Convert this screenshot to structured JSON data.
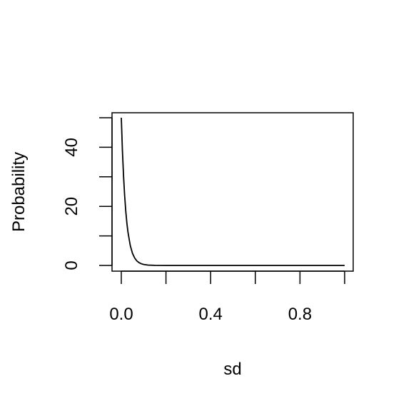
{
  "chart_data": {
    "type": "line",
    "title": "",
    "xlabel": "sd",
    "ylabel": "Probability",
    "xlim": [
      0,
      1
    ],
    "ylim": [
      0,
      50
    ],
    "x_ticks_major": [
      0,
      0.2,
      0.4,
      0.6,
      0.8,
      1.0
    ],
    "x_tick_labels": [
      {
        "value": 0.0,
        "label": "0.0"
      },
      {
        "value": 0.4,
        "label": "0.4"
      },
      {
        "value": 0.8,
        "label": "0.8"
      }
    ],
    "y_ticks_major": [
      0,
      10,
      20,
      30,
      40,
      50
    ],
    "y_tick_labels": [
      {
        "value": 0,
        "label": "0"
      },
      {
        "value": 20,
        "label": "20"
      },
      {
        "value": 40,
        "label": "40"
      }
    ],
    "grid": false,
    "series": [
      {
        "color": "#000000",
        "x": [
          0.0,
          0.005,
          0.01,
          0.015,
          0.02,
          0.025,
          0.03,
          0.04,
          0.05,
          0.06,
          0.07,
          0.08,
          0.09,
          0.1,
          0.12,
          0.15,
          0.2,
          0.3,
          0.4,
          0.5,
          0.6,
          0.7,
          0.8,
          0.9,
          1.0
        ],
        "y": [
          50.0,
          38.9,
          30.3,
          23.6,
          18.4,
          14.3,
          11.2,
          6.8,
          4.1,
          2.5,
          1.5,
          0.91,
          0.56,
          0.34,
          0.12,
          0.028,
          0.0023,
          0.0,
          0.0,
          0.0,
          0.0,
          0.0,
          0.0,
          0.0,
          0.0
        ]
      }
    ]
  }
}
